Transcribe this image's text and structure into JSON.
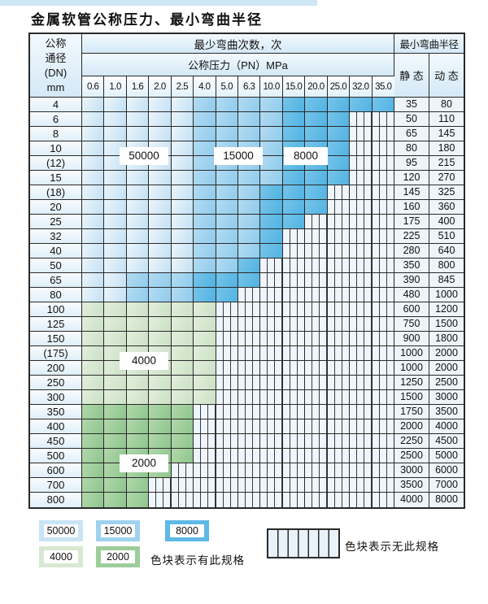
{
  "page": {
    "title": "金属软管公称压力、最小弯曲半径"
  },
  "table": {
    "header": {
      "dn_label": "公称\n通径\n(DN)\nmm",
      "bend_cycles_label": "最少弯曲次数，次",
      "pressure_label": "公称压力（PN）MPa",
      "min_radius_label": "最小弯曲半径",
      "static_label": "静 态",
      "dynamic_label": "动 态",
      "pressures": [
        "0.6",
        "1.0",
        "1.6",
        "2.0",
        "2.5",
        "4.0",
        "5.0",
        "6.3",
        "10.0",
        "15.0",
        "20.0",
        "25.0",
        "32.0",
        "35.0"
      ]
    },
    "cell_code_key": {
      "L": "blue-light: 50000 bend cycles",
      "M": "blue-mid: 15000 bend cycles",
      "D": "blue-dark: 8000 bend cycles",
      "g": "green-light: 4000 bend cycles",
      "G": "green-dark: 2000 bend cycles",
      "s": "striped: specification not available"
    },
    "rows": [
      {
        "dn": "4",
        "cells": "LLLLLMMMMDDDDD",
        "static": "35",
        "dynamic": "80"
      },
      {
        "dn": "6",
        "cells": "LLLLLMMMMDDDss",
        "static": "50",
        "dynamic": "110"
      },
      {
        "dn": "8",
        "cells": "LLLLLMMMMDDDss",
        "static": "65",
        "dynamic": "145"
      },
      {
        "dn": "10",
        "cells": "LLLLLMMMMDDDss",
        "static": "80",
        "dynamic": "180"
      },
      {
        "dn": "(12)",
        "cells": "LLLLLMMMMDDDss",
        "static": "95",
        "dynamic": "215"
      },
      {
        "dn": "15",
        "cells": "LLLLLMMMMDDDss",
        "static": "120",
        "dynamic": "270"
      },
      {
        "dn": "(18)",
        "cells": "LLLLLMMMDDDsss",
        "static": "145",
        "dynamic": "325"
      },
      {
        "dn": "20",
        "cells": "LLLLLMMMDDDsss",
        "static": "160",
        "dynamic": "360"
      },
      {
        "dn": "25",
        "cells": "LLLLLMMMDDssss",
        "static": "175",
        "dynamic": "400"
      },
      {
        "dn": "32",
        "cells": "LLLLLMMMDsssss",
        "static": "225",
        "dynamic": "510"
      },
      {
        "dn": "40",
        "cells": "LLLLLMMMDsssss",
        "static": "280",
        "dynamic": "640"
      },
      {
        "dn": "50",
        "cells": "LLLLLMMDssssss",
        "static": "350",
        "dynamic": "800"
      },
      {
        "dn": "65",
        "cells": "LLMMMDDDssssss",
        "static": "390",
        "dynamic": "845"
      },
      {
        "dn": "80",
        "cells": "LLMMMDDsssssss",
        "static": "480",
        "dynamic": "1000"
      },
      {
        "dn": "100",
        "cells": "ggggggssssssss",
        "static": "600",
        "dynamic": "1200"
      },
      {
        "dn": "125",
        "cells": "ggggggssssssss",
        "static": "750",
        "dynamic": "1500"
      },
      {
        "dn": "150",
        "cells": "ggggggssssssss",
        "static": "900",
        "dynamic": "1800"
      },
      {
        "dn": "(175)",
        "cells": "ggggggssssssss",
        "static": "1000",
        "dynamic": "2000"
      },
      {
        "dn": "200",
        "cells": "ggggggssssssss",
        "static": "1000",
        "dynamic": "2000"
      },
      {
        "dn": "250",
        "cells": "ggggggssssssss",
        "static": "1250",
        "dynamic": "2500"
      },
      {
        "dn": "300",
        "cells": "ggggggssssssss",
        "static": "1500",
        "dynamic": "3000"
      },
      {
        "dn": "350",
        "cells": "GGGGGsssssssss",
        "static": "1750",
        "dynamic": "3500"
      },
      {
        "dn": "400",
        "cells": "GGGGGsssssssss",
        "static": "2000",
        "dynamic": "4000"
      },
      {
        "dn": "450",
        "cells": "GGGGGsssssssss",
        "static": "2250",
        "dynamic": "4500"
      },
      {
        "dn": "500",
        "cells": "GGGGGsssssssss",
        "static": "2500",
        "dynamic": "5000"
      },
      {
        "dn": "600",
        "cells": "GGGGssssssssss",
        "static": "3000",
        "dynamic": "6000"
      },
      {
        "dn": "700",
        "cells": "GGGsssssssssss",
        "static": "3500",
        "dynamic": "7000"
      },
      {
        "dn": "800",
        "cells": "GGGsssssssssss",
        "static": "4000",
        "dynamic": "8000"
      }
    ]
  },
  "overlays": {
    "c50000": "50000",
    "c15000": "15000",
    "c8000": "8000",
    "c4000": "4000",
    "c2000": "2000"
  },
  "legend": {
    "chips": [
      {
        "label": "50000",
        "color": "blue_light"
      },
      {
        "label": "15000",
        "color": "blue_mid"
      },
      {
        "label": "8000",
        "color": "blue_dark"
      },
      {
        "label": "4000",
        "color": "green_light"
      },
      {
        "label": "2000",
        "color": "green_dark"
      }
    ],
    "available_text": "色块表示有此规格",
    "unavailable_text": "色块表示无此规格"
  },
  "colors": {
    "blue_light": "#c9e4f5",
    "blue_mid": "#9fd2ef",
    "blue_dark": "#5eb9e6",
    "green_light": "#d8e9d3",
    "green_dark": "#9dcd9b",
    "border": "#2a2a2a"
  }
}
